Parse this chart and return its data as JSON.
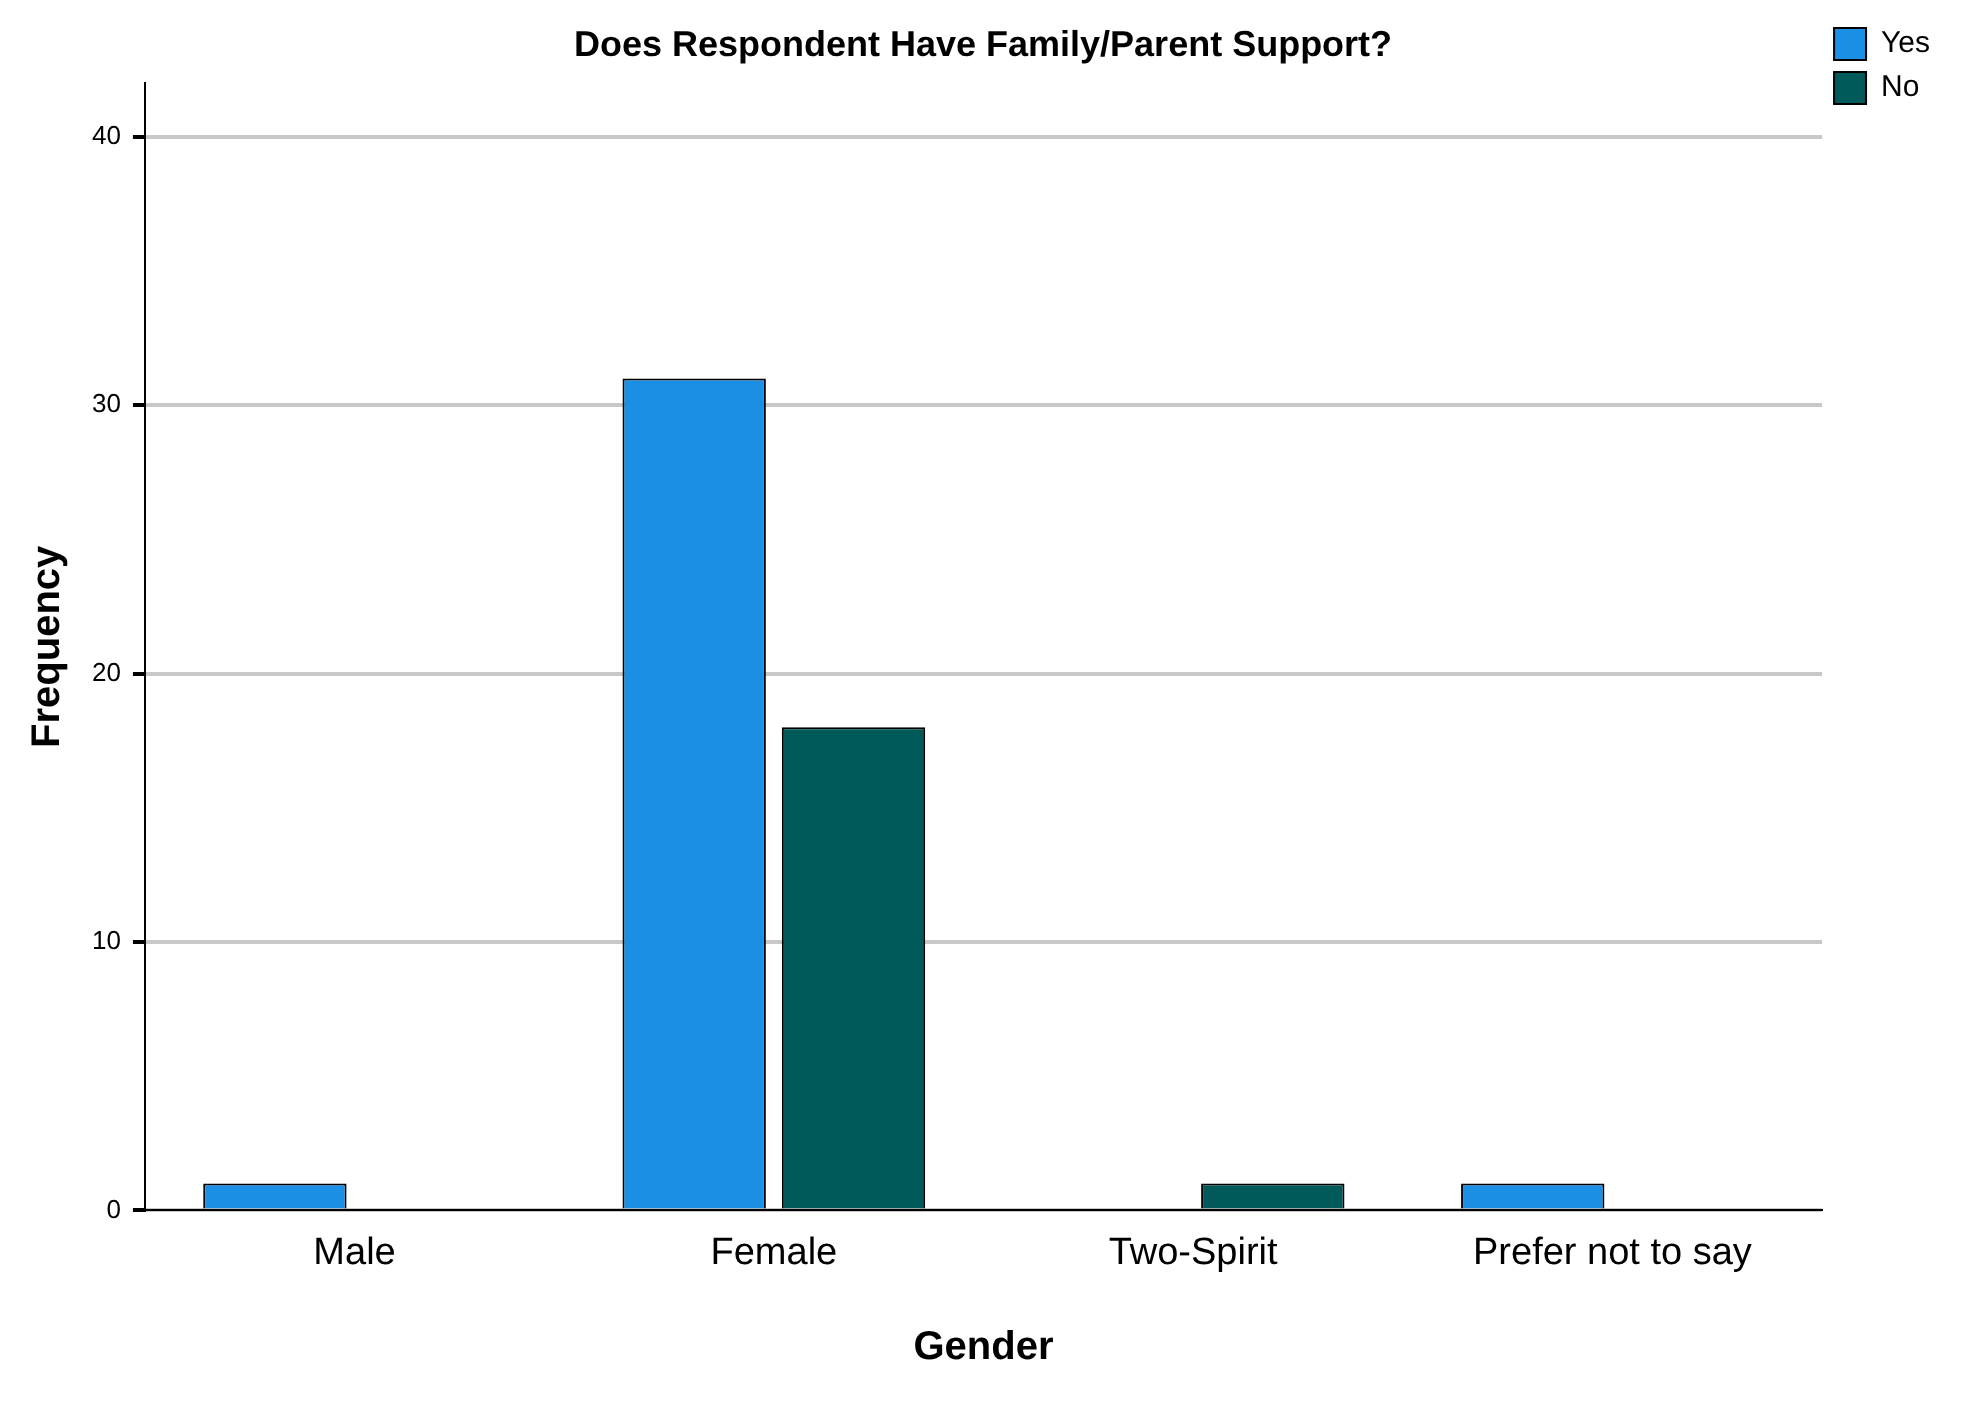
{
  "chart_data": {
    "type": "bar",
    "title": "Does Respondent Have Family/Parent Support?",
    "xlabel": "Gender",
    "ylabel": "Frequency",
    "categories": [
      "Male",
      "Female",
      "Two-Spirit",
      "Prefer not to say"
    ],
    "series": [
      {
        "name": "Yes",
        "color": "#1a8fe3",
        "values": [
          1,
          31,
          null,
          1
        ]
      },
      {
        "name": "No",
        "color": "#005a5a",
        "values": [
          null,
          18,
          1,
          null
        ]
      }
    ],
    "ylim": [
      0,
      42
    ],
    "yticks": [
      0,
      10,
      20,
      30,
      40
    ],
    "grid": "y",
    "legend": "top right"
  }
}
